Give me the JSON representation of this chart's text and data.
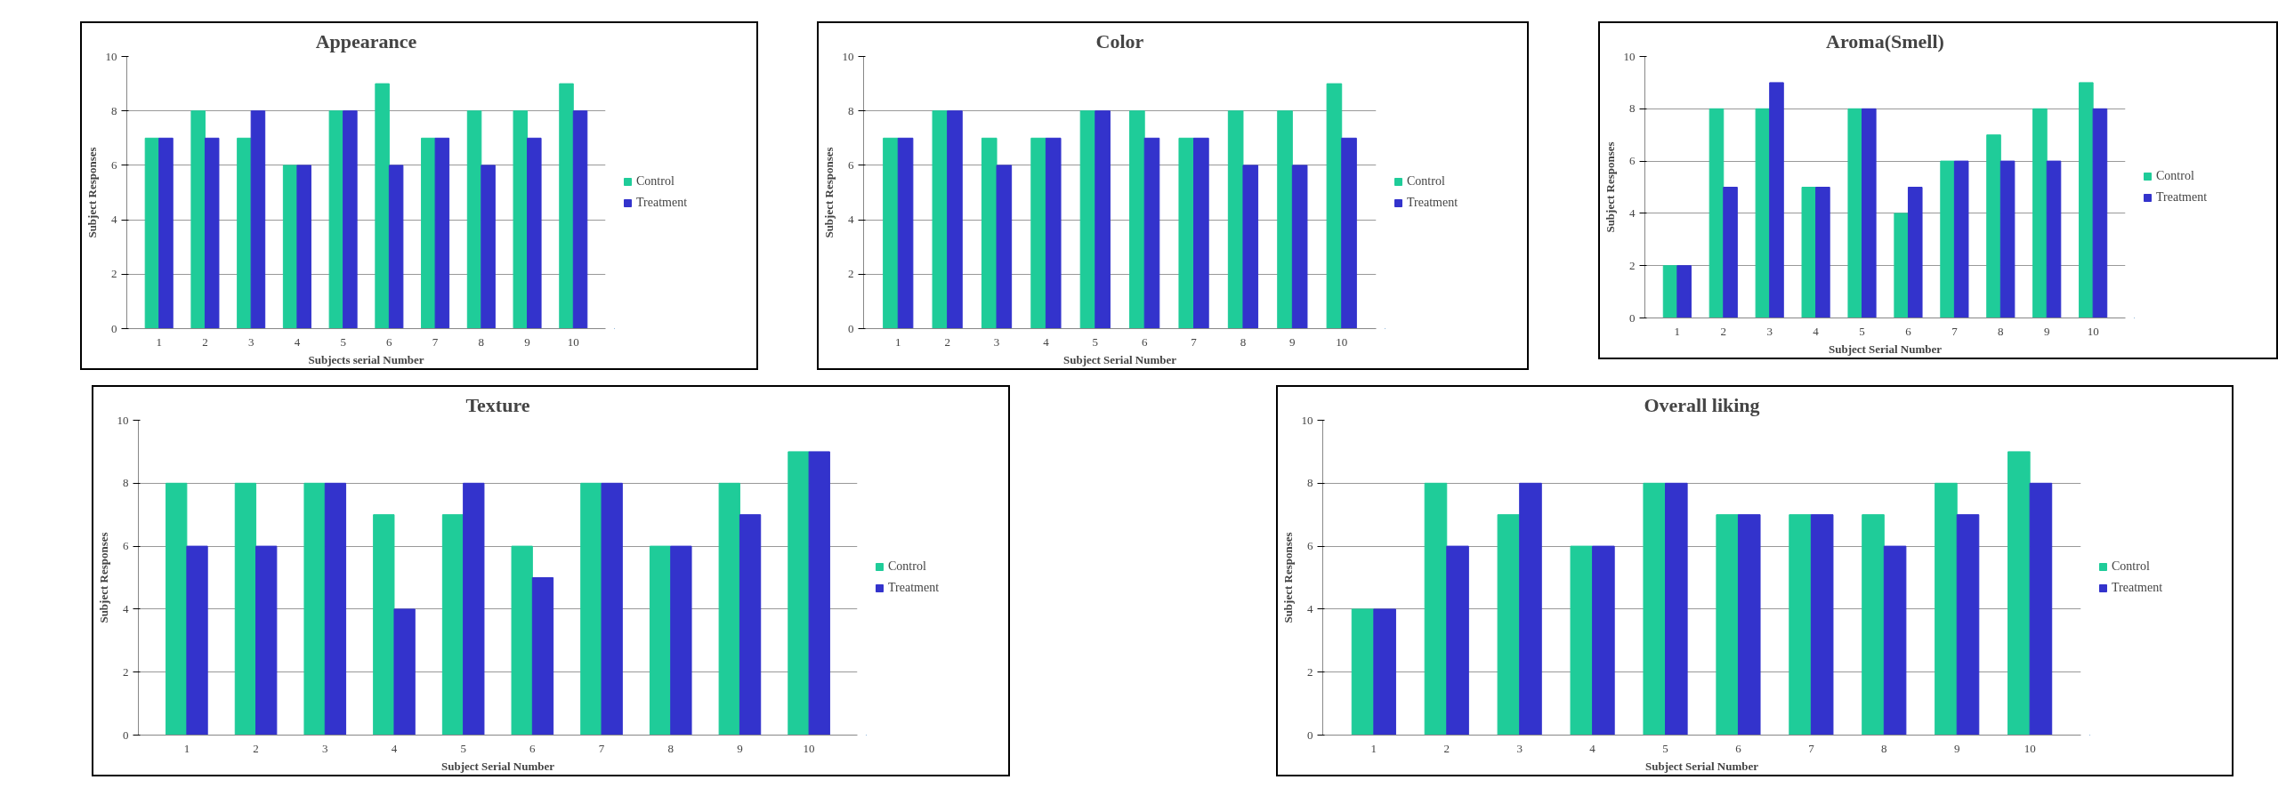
{
  "chart_data": [
    {
      "type": "bar",
      "title": "Appearance",
      "xlabel": "Subjects serial Number",
      "ylabel": "Subject Responses",
      "categories": [
        "1",
        "2",
        "3",
        "4",
        "5",
        "6",
        "7",
        "8",
        "9",
        "10"
      ],
      "ylim": [
        0,
        10
      ],
      "yticks": [
        0,
        2,
        4,
        6,
        8,
        10
      ],
      "grid": "y",
      "legend": "right",
      "series": [
        {
          "name": "Control",
          "color": "#1fcc99",
          "values": [
            7,
            8,
            7,
            6,
            8,
            9,
            7,
            8,
            8,
            9
          ]
        },
        {
          "name": "Treatment",
          "color": "#3333cc",
          "values": [
            7,
            7,
            8,
            6,
            8,
            6,
            7,
            6,
            7,
            8
          ]
        }
      ]
    },
    {
      "type": "bar",
      "title": "Color",
      "xlabel": "Subject Serial Number",
      "ylabel": "Subject Responses",
      "categories": [
        "1",
        "2",
        "3",
        "4",
        "5",
        "6",
        "7",
        "8",
        "9",
        "10"
      ],
      "ylim": [
        0,
        10
      ],
      "yticks": [
        0,
        2,
        4,
        6,
        8,
        10
      ],
      "grid": "y",
      "legend": "right",
      "series": [
        {
          "name": "Control",
          "color": "#1fcc99",
          "values": [
            7,
            8,
            7,
            7,
            8,
            8,
            7,
            8,
            8,
            9
          ]
        },
        {
          "name": "Treatment",
          "color": "#3333cc",
          "values": [
            7,
            8,
            6,
            7,
            8,
            7,
            7,
            6,
            6,
            7
          ]
        }
      ]
    },
    {
      "type": "bar",
      "title": "Aroma(Smell)",
      "xlabel": "Subject Serial Number",
      "ylabel": "Subject Responses",
      "categories": [
        "1",
        "2",
        "3",
        "4",
        "5",
        "6",
        "7",
        "8",
        "9",
        "10"
      ],
      "ylim": [
        0,
        10
      ],
      "yticks": [
        0,
        2,
        4,
        6,
        8,
        10
      ],
      "grid": "y",
      "legend": "right",
      "series": [
        {
          "name": "Control",
          "color": "#1fcc99",
          "values": [
            2,
            8,
            8,
            5,
            8,
            4,
            6,
            7,
            8,
            9
          ]
        },
        {
          "name": "Treatment",
          "color": "#3333cc",
          "values": [
            2,
            5,
            9,
            5,
            8,
            5,
            6,
            6,
            6,
            8
          ]
        }
      ]
    },
    {
      "type": "bar",
      "title": "Texture",
      "xlabel": "Subject Serial Number",
      "ylabel": "Subject Responses",
      "categories": [
        "1",
        "2",
        "3",
        "4",
        "5",
        "6",
        "7",
        "8",
        "9",
        "10"
      ],
      "ylim": [
        0,
        10
      ],
      "yticks": [
        0,
        2,
        4,
        6,
        8,
        10
      ],
      "grid": "y",
      "legend": "right",
      "series": [
        {
          "name": "Control",
          "color": "#1fcc99",
          "values": [
            8,
            8,
            8,
            7,
            7,
            6,
            8,
            6,
            8,
            9
          ]
        },
        {
          "name": "Treatment",
          "color": "#3333cc",
          "values": [
            6,
            6,
            8,
            4,
            8,
            5,
            8,
            6,
            7,
            9
          ]
        }
      ]
    },
    {
      "type": "bar",
      "title": "Overall liking",
      "xlabel": "Subject Serial Number",
      "ylabel": "Subject Responses",
      "categories": [
        "1",
        "2",
        "3",
        "4",
        "5",
        "6",
        "7",
        "8",
        "9",
        "10"
      ],
      "ylim": [
        0,
        10
      ],
      "yticks": [
        0,
        2,
        4,
        6,
        8,
        10
      ],
      "grid": "y",
      "legend": "right",
      "series": [
        {
          "name": "Control",
          "color": "#1fcc99",
          "values": [
            4,
            8,
            7,
            6,
            8,
            7,
            7,
            7,
            8,
            9
          ]
        },
        {
          "name": "Treatment",
          "color": "#3333cc",
          "values": [
            4,
            6,
            8,
            6,
            8,
            7,
            7,
            6,
            7,
            8
          ]
        }
      ]
    }
  ]
}
